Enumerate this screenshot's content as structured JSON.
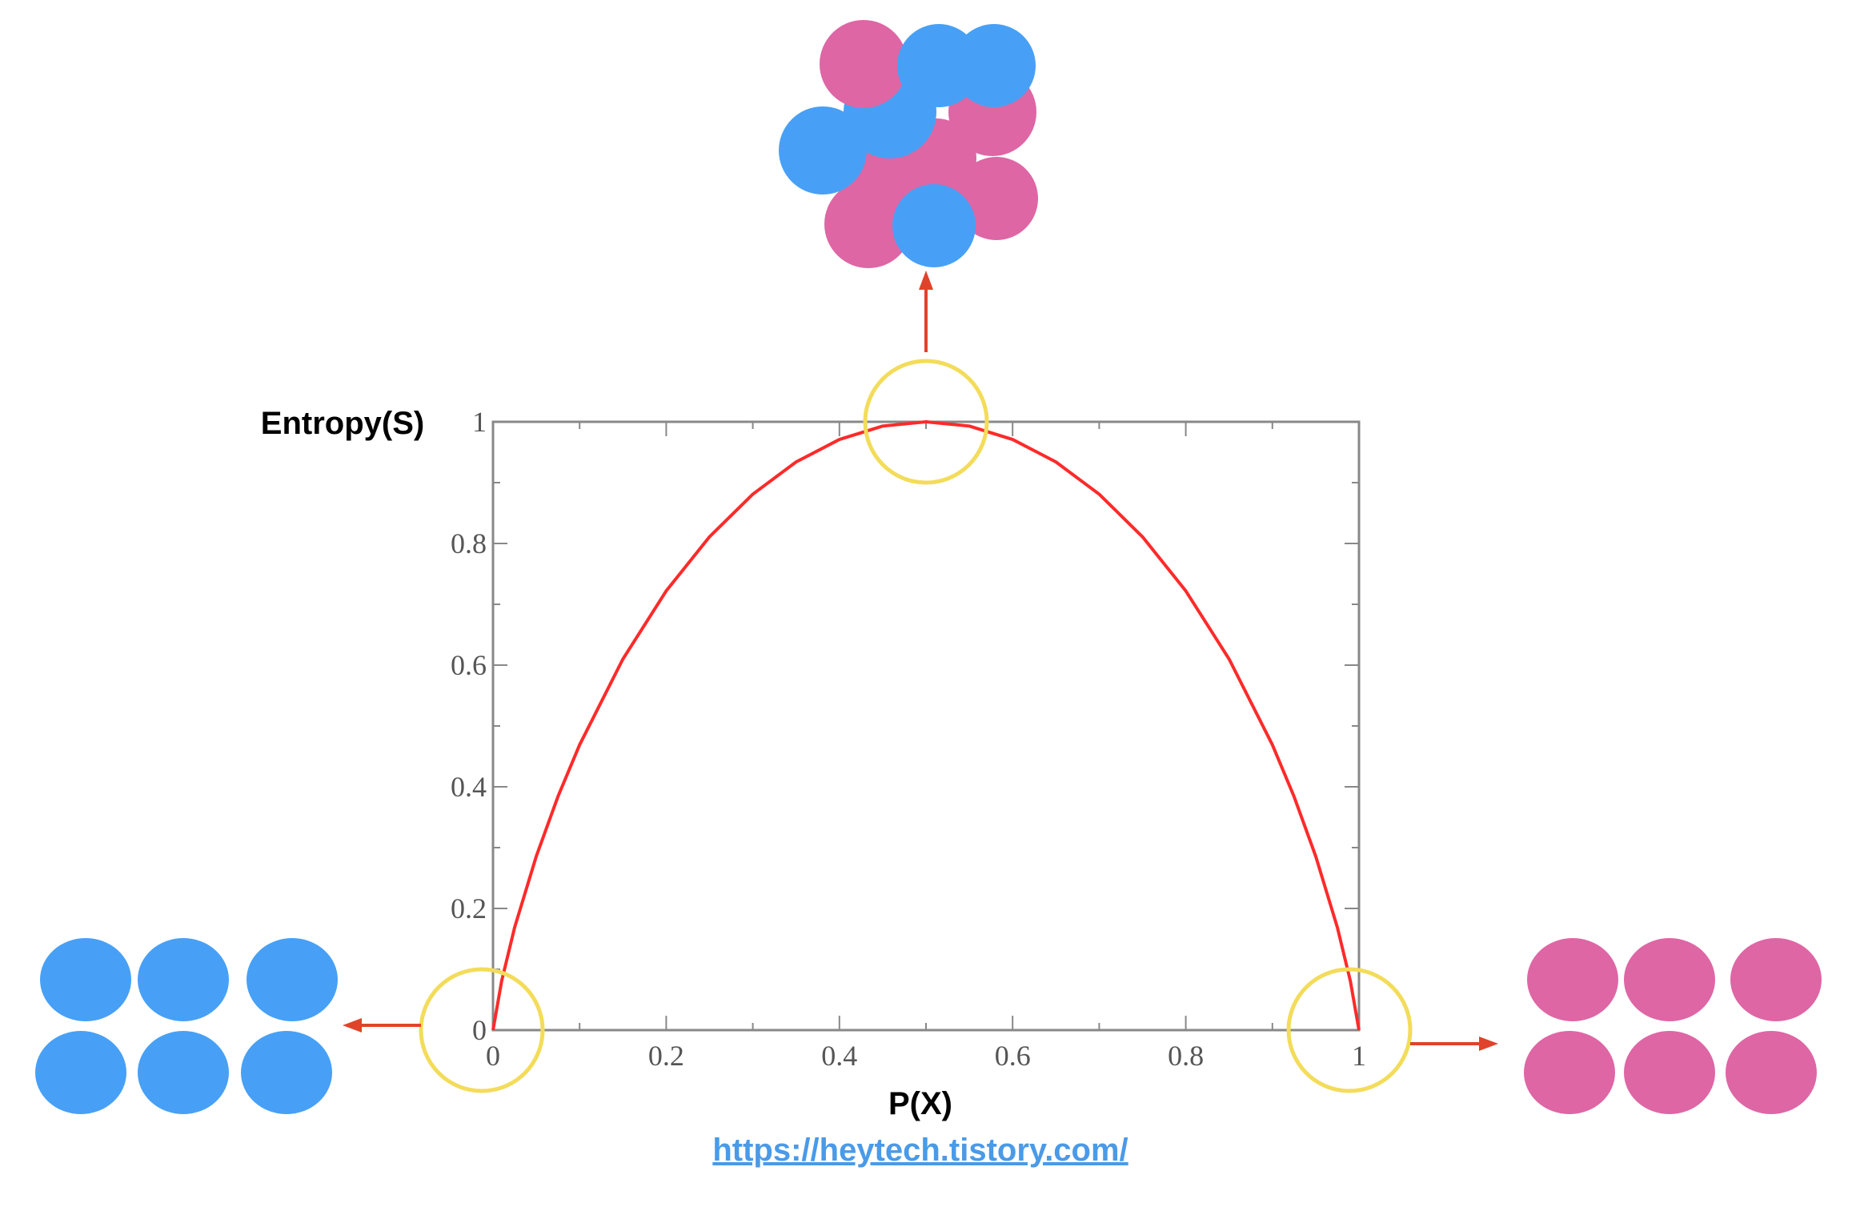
{
  "chart_data": {
    "type": "line",
    "xlabel": "P(X)",
    "ylabel": "Entropy(S)",
    "xlim": [
      0,
      1
    ],
    "ylim": [
      0,
      1
    ],
    "xticks": [
      0,
      0.2,
      0.4,
      0.6,
      0.8,
      1
    ],
    "xtick_labels": [
      "0",
      "0.2",
      "0.4",
      "0.6",
      "0.8",
      "1"
    ],
    "yticks": [
      0,
      0.2,
      0.4,
      0.6,
      0.8,
      1
    ],
    "ytick_labels": [
      "0",
      "0.2",
      "0.4",
      "0.6",
      "0.8",
      "1"
    ],
    "grid": false,
    "series": [
      {
        "color": "#ff2a2a",
        "x": [
          0,
          0.01,
          0.025,
          0.05,
          0.075,
          0.1,
          0.15,
          0.2,
          0.25,
          0.3,
          0.35,
          0.4,
          0.45,
          0.5,
          0.55,
          0.6,
          0.65,
          0.7,
          0.75,
          0.8,
          0.85,
          0.9,
          0.925,
          0.95,
          0.975,
          0.99,
          1
        ],
        "y": [
          0,
          0.081,
          0.169,
          0.286,
          0.384,
          0.469,
          0.61,
          0.722,
          0.811,
          0.881,
          0.934,
          0.971,
          0.993,
          1,
          0.993,
          0.971,
          0.934,
          0.881,
          0.811,
          0.722,
          0.61,
          0.469,
          0.384,
          0.286,
          0.169,
          0.081,
          0
        ]
      }
    ],
    "highlights": [
      {
        "x": 0,
        "y": 0,
        "color": "#f3dc5a"
      },
      {
        "x": 0.5,
        "y": 1,
        "color": "#f3dc5a"
      },
      {
        "x": 1,
        "y": 0,
        "color": "#f3dc5a"
      }
    ],
    "arrow_color": "#e0432b",
    "group_colors": {
      "blue": "#47a0f5",
      "pink": "#de66a5"
    }
  },
  "source_link": "https://heytech.tistory.com/"
}
